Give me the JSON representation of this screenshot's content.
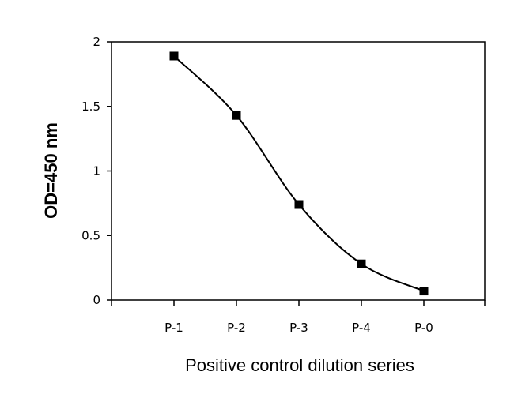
{
  "chart_data": {
    "type": "line",
    "categories": [
      "P-1",
      "P-2",
      "P-3",
      "P-4",
      "P-0"
    ],
    "series": [
      {
        "values": [
          1.89,
          1.43,
          0.74,
          0.28,
          0.07
        ]
      }
    ],
    "xlabel": "Positive control dilution series",
    "ylabel": "OD=450 nm",
    "ylim": [
      0,
      2
    ],
    "yticks": [
      "0",
      "0.5",
      "1",
      "1.5",
      "2"
    ],
    "grid": false,
    "marker": "square",
    "line_style": "smooth",
    "color": "#000000"
  }
}
